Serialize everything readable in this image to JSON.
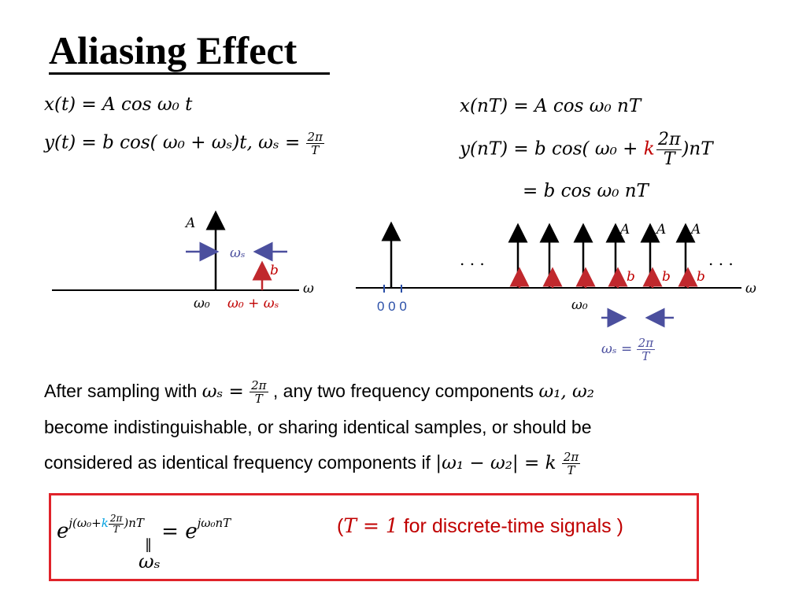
{
  "title": "Aliasing Effect",
  "equations": {
    "x_t": "x(t) = A cos ω₀ t",
    "y_t_prefix": "y(t) = b cos( ω₀ + ωₛ)t,  ωₛ = ",
    "x_nT": "x(nT) = A cos ω₀ nT",
    "y_nT_prefix": "y(nT) = b cos( ω₀ + ",
    "k": "k",
    "y_nT_suffix": ")nT",
    "y_nT_result": "= b cos ω₀ nT",
    "two_pi": "2π",
    "T": "T"
  },
  "left_plot": {
    "A_label": "A",
    "ws_label": "ωₛ",
    "b_label": "b",
    "omega_axis": "ω",
    "w0_label": "ω₀",
    "w0_ws_label": "ω₀ + ωₛ"
  },
  "right_plot": {
    "A_labels": [
      "A",
      "A",
      "A"
    ],
    "b_labels": [
      "b",
      "b",
      "b"
    ],
    "ellipsis_left": ". . .",
    "ellipsis_right": ". . .",
    "omega_axis": "ω",
    "zeros": "0 0 0",
    "w0_label": "ω₀",
    "ws_prefix": "ωₛ ="
  },
  "paragraph": {
    "line1_a": "After sampling with ",
    "line1_m": "ωₛ = ",
    "line1_b": " , any two frequency components ",
    "line1_m2": "ω₁, ω₂",
    "line2": "become indistinguishable, or sharing identical samples, or should be",
    "line3_a": "considered as identical frequency components if ",
    "line3_m": "|ω₁ − ω₂| = k "
  },
  "boxed": {
    "lhs_base": "e",
    "lhs_exp_a": "j(ω₀+",
    "lhs_exp_k": "k",
    "lhs_exp_b": ")nT",
    "equals": "= e",
    "rhs_exp": "jω₀nT",
    "under_eq": "‖",
    "under_ws": "ωₛ",
    "note_open": "(",
    "note_T": "T = 1",
    "note_rest": " for discrete-time signals )"
  },
  "colors": {
    "black_arrow": "#000000",
    "red_arrow": "#c0282d",
    "blue_arrow": "#4b4f9e",
    "frame": "#e0232a"
  }
}
